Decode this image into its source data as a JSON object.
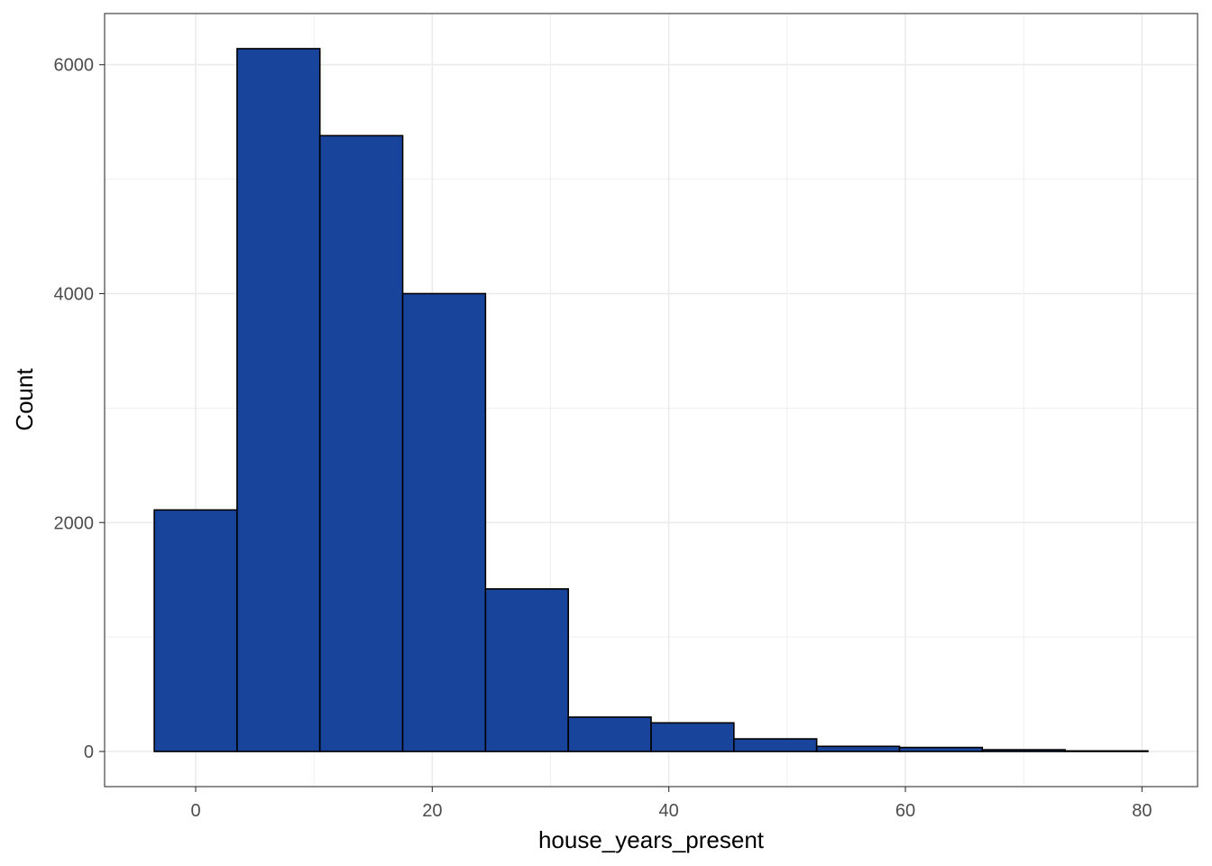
{
  "chart_data": {
    "type": "bar",
    "subtype": "histogram",
    "xlabel": "house_years_present",
    "ylabel": "Count",
    "bin_width": 7,
    "bins": [
      {
        "start": -3.5,
        "end": 3.5,
        "count": 2110
      },
      {
        "start": 3.5,
        "end": 10.5,
        "count": 6140
      },
      {
        "start": 10.5,
        "end": 17.5,
        "count": 5380
      },
      {
        "start": 17.5,
        "end": 24.5,
        "count": 4000
      },
      {
        "start": 24.5,
        "end": 31.5,
        "count": 1420
      },
      {
        "start": 31.5,
        "end": 38.5,
        "count": 300
      },
      {
        "start": 38.5,
        "end": 45.5,
        "count": 250
      },
      {
        "start": 45.5,
        "end": 52.5,
        "count": 110
      },
      {
        "start": 52.5,
        "end": 59.5,
        "count": 45
      },
      {
        "start": 59.5,
        "end": 66.5,
        "count": 35
      },
      {
        "start": 66.5,
        "end": 73.5,
        "count": 15
      },
      {
        "start": 73.5,
        "end": 80.5,
        "count": 5
      }
    ],
    "xlim": [
      -7.7,
      84.7
    ],
    "ylim": [
      -307,
      6447
    ],
    "x_ticks": [
      0,
      20,
      40,
      60,
      80
    ],
    "x_minor_ticks": [
      10,
      30,
      50,
      70
    ],
    "y_ticks": [
      0,
      2000,
      4000,
      6000
    ],
    "y_minor_ticks": [
      1000,
      3000,
      5000
    ],
    "x_tick_labels": [
      "0",
      "20",
      "40",
      "60",
      "80"
    ],
    "y_tick_labels": [
      "0",
      "2000",
      "4000",
      "6000"
    ],
    "grid": true,
    "colors": {
      "bar_fill": "#18449b",
      "bar_outline": "#000000",
      "grid": "#ebebeb",
      "panel_border": "#333333"
    }
  }
}
